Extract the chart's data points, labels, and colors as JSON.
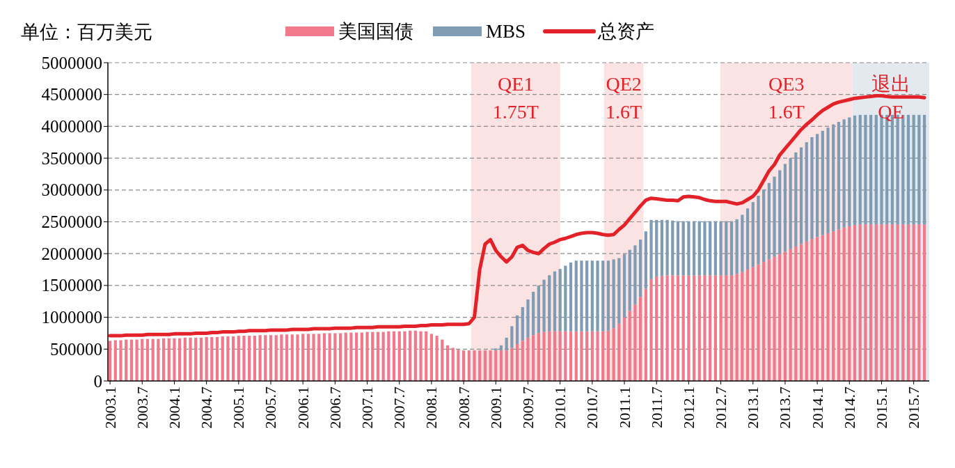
{
  "chart_data": {
    "type": "bar",
    "stacked": true,
    "ylabel": "单位：百万美元",
    "legend": "top",
    "grid": "y",
    "line_style": "solid",
    "x": [
      "2003-01",
      "2003-02",
      "2003-03",
      "2003-04",
      "2003-05",
      "2003-06",
      "2003-07",
      "2003-08",
      "2003-09",
      "2003-10",
      "2003-11",
      "2003-12",
      "2004-01",
      "2004-02",
      "2004-03",
      "2004-04",
      "2004-05",
      "2004-06",
      "2004-07",
      "2004-08",
      "2004-09",
      "2004-10",
      "2004-11",
      "2004-12",
      "2005-01",
      "2005-02",
      "2005-03",
      "2005-04",
      "2005-05",
      "2005-06",
      "2005-07",
      "2005-08",
      "2005-09",
      "2005-10",
      "2005-11",
      "2005-12",
      "2006-01",
      "2006-02",
      "2006-03",
      "2006-04",
      "2006-05",
      "2006-06",
      "2006-07",
      "2006-08",
      "2006-09",
      "2006-10",
      "2006-11",
      "2006-12",
      "2007-01",
      "2007-02",
      "2007-03",
      "2007-04",
      "2007-05",
      "2007-06",
      "2007-07",
      "2007-08",
      "2007-09",
      "2007-10",
      "2007-11",
      "2007-12",
      "2008-01",
      "2008-02",
      "2008-03",
      "2008-04",
      "2008-05",
      "2008-06",
      "2008-07",
      "2008-08",
      "2008-09",
      "2008-10",
      "2008-11",
      "2008-12",
      "2009-01",
      "2009-02",
      "2009-03",
      "2009-04",
      "2009-05",
      "2009-06",
      "2009-07",
      "2009-08",
      "2009-09",
      "2009-10",
      "2009-11",
      "2009-12",
      "2010-01",
      "2010-02",
      "2010-03",
      "2010-04",
      "2010-05",
      "2010-06",
      "2010-07",
      "2010-08",
      "2010-09",
      "2010-10",
      "2010-11",
      "2010-12",
      "2011-01",
      "2011-02",
      "2011-03",
      "2011-04",
      "2011-05",
      "2011-06",
      "2011-07",
      "2011-08",
      "2011-09",
      "2011-10",
      "2011-11",
      "2011-12",
      "2012-01",
      "2012-02",
      "2012-03",
      "2012-04",
      "2012-05",
      "2012-06",
      "2012-07",
      "2012-08",
      "2012-09",
      "2012-10",
      "2012-11",
      "2012-12",
      "2013-01",
      "2013-02",
      "2013-03",
      "2013-04",
      "2013-05",
      "2013-06",
      "2013-07",
      "2013-08",
      "2013-09",
      "2013-10",
      "2013-11",
      "2013-12",
      "2014-01",
      "2014-02",
      "2014-03",
      "2014-04",
      "2014-05",
      "2014-06",
      "2014-07",
      "2014-08",
      "2014-09",
      "2014-10",
      "2014-11",
      "2014-12",
      "2015-01",
      "2015-02",
      "2015-03",
      "2015-04",
      "2015-05",
      "2015-06",
      "2015-07",
      "2015-08",
      "2015-09"
    ],
    "xlim": [
      "2002-12-19",
      "2015-09-28"
    ],
    "xticks": [
      {
        "value": "2003-01",
        "label": "2003.1"
      },
      {
        "value": "2003-07",
        "label": "2003.7"
      },
      {
        "value": "2004-01",
        "label": "2004.1"
      },
      {
        "value": "2004-07",
        "label": "2004.7"
      },
      {
        "value": "2005-01",
        "label": "2005.1"
      },
      {
        "value": "2005-07",
        "label": "2005.7"
      },
      {
        "value": "2006-01",
        "label": "2006.1"
      },
      {
        "value": "2006-07",
        "label": "2006.7"
      },
      {
        "value": "2007-01",
        "label": "2007.1"
      },
      {
        "value": "2007-07",
        "label": "2007.7"
      },
      {
        "value": "2008-01",
        "label": "2008.1"
      },
      {
        "value": "2008-07",
        "label": "2008.7"
      },
      {
        "value": "2009-01",
        "label": "2009.1"
      },
      {
        "value": "2009-07",
        "label": "2009.7"
      },
      {
        "value": "2010-01",
        "label": "2010.1"
      },
      {
        "value": "2010-07",
        "label": "2010.7"
      },
      {
        "value": "2011-01",
        "label": "2011.1"
      },
      {
        "value": "2011-07",
        "label": "2011.7"
      },
      {
        "value": "2012-01",
        "label": "2012.1"
      },
      {
        "value": "2012-07",
        "label": "2012.7"
      },
      {
        "value": "2013-01",
        "label": "2013.1"
      },
      {
        "value": "2013-07",
        "label": "2013.7"
      },
      {
        "value": "2014-01",
        "label": "2014.1"
      },
      {
        "value": "2014-07",
        "label": "2014.7"
      },
      {
        "value": "2015-01",
        "label": "2015.1"
      },
      {
        "value": "2015-07",
        "label": "2015.7"
      }
    ],
    "ylim": [
      0,
      5000000
    ],
    "yticks": [
      0,
      500000,
      1000000,
      1500000,
      2000000,
      2500000,
      3000000,
      3500000,
      4000000,
      4500000,
      5000000
    ],
    "bands": [
      {
        "axis": "x",
        "from": "2008-08-13",
        "to": "2010-01-01",
        "label": "QE1\n1.75T",
        "color": "#fce3e3"
      },
      {
        "axis": "x",
        "from": "2010-09-07",
        "to": "2011-04-18",
        "label": "QE2\n1.6T",
        "color": "#fce3e3"
      },
      {
        "axis": "x",
        "from": "2012-06-28",
        "to": "2014-07-18",
        "label": "QE3\n1.6T",
        "color": "#fce3e3"
      },
      {
        "axis": "x",
        "from": "2014-07-18",
        "to": "2015-09-28",
        "label": "退出\nQE",
        "color": "#e3e9ee"
      }
    ],
    "series": [
      {
        "name": "美国国债",
        "color": "#f07a8c",
        "values": [
          630000,
          640000,
          640000,
          650000,
          650000,
          650000,
          660000,
          660000,
          660000,
          660000,
          670000,
          670000,
          670000,
          670000,
          680000,
          680000,
          680000,
          680000,
          690000,
          690000,
          690000,
          700000,
          700000,
          700000,
          710000,
          710000,
          710000,
          710000,
          720000,
          720000,
          720000,
          720000,
          730000,
          730000,
          730000,
          730000,
          740000,
          740000,
          740000,
          740000,
          750000,
          750000,
          750000,
          750000,
          760000,
          760000,
          760000,
          760000,
          770000,
          770000,
          770000,
          770000,
          780000,
          780000,
          780000,
          780000,
          790000,
          790000,
          780000,
          780000,
          740000,
          710000,
          650000,
          560000,
          520000,
          490000,
          480000,
          480000,
          480000,
          480000,
          480000,
          480000,
          480000,
          480000,
          480000,
          520000,
          580000,
          630000,
          680000,
          720000,
          750000,
          770000,
          780000,
          780000,
          780000,
          780000,
          780000,
          780000,
          780000,
          780000,
          780000,
          780000,
          780000,
          790000,
          830000,
          900000,
          1000000,
          1100000,
          1200000,
          1320000,
          1450000,
          1600000,
          1640000,
          1650000,
          1660000,
          1660000,
          1660000,
          1660000,
          1660000,
          1660000,
          1660000,
          1660000,
          1660000,
          1660000,
          1660000,
          1660000,
          1660000,
          1680000,
          1710000,
          1750000,
          1790000,
          1830000,
          1870000,
          1910000,
          1950000,
          1990000,
          2030000,
          2070000,
          2110000,
          2150000,
          2190000,
          2230000,
          2260000,
          2290000,
          2320000,
          2350000,
          2380000,
          2410000,
          2430000,
          2450000,
          2460000,
          2460000,
          2460000,
          2460000,
          2460000,
          2460000,
          2460000,
          2460000,
          2460000,
          2460000,
          2460000,
          2460000,
          2460000
        ]
      },
      {
        "name": "MBS",
        "color": "#7e9cb4",
        "values": [
          0,
          0,
          0,
          0,
          0,
          0,
          0,
          0,
          0,
          0,
          0,
          0,
          0,
          0,
          0,
          0,
          0,
          0,
          0,
          0,
          0,
          0,
          0,
          0,
          0,
          0,
          0,
          0,
          0,
          0,
          0,
          0,
          0,
          0,
          0,
          0,
          0,
          0,
          0,
          0,
          0,
          0,
          0,
          0,
          0,
          0,
          0,
          0,
          0,
          0,
          0,
          0,
          0,
          0,
          0,
          0,
          0,
          0,
          0,
          0,
          0,
          0,
          0,
          0,
          0,
          0,
          0,
          0,
          0,
          0,
          0,
          0,
          30000,
          80000,
          200000,
          340000,
          450000,
          530000,
          600000,
          680000,
          750000,
          820000,
          880000,
          940000,
          980000,
          1030000,
          1080000,
          1110000,
          1110000,
          1110000,
          1110000,
          1110000,
          1110000,
          1100000,
          1080000,
          1030000,
          990000,
          960000,
          930000,
          900000,
          900000,
          930000,
          890000,
          880000,
          870000,
          860000,
          850000,
          850000,
          850000,
          850000,
          850000,
          850000,
          850000,
          850000,
          850000,
          850000,
          850000,
          860000,
          900000,
          960000,
          1020000,
          1080000,
          1140000,
          1200000,
          1260000,
          1320000,
          1380000,
          1430000,
          1480000,
          1520000,
          1560000,
          1600000,
          1620000,
          1640000,
          1660000,
          1680000,
          1690000,
          1700000,
          1710000,
          1720000,
          1720000,
          1720000,
          1720000,
          1720000,
          1720000,
          1720000,
          1720000,
          1720000,
          1720000,
          1720000,
          1720000,
          1720000,
          1720000
        ]
      },
      {
        "name": "总资产",
        "type": "line",
        "color": "#e32129",
        "values": [
          710000,
          710000,
          710000,
          720000,
          720000,
          720000,
          720000,
          730000,
          730000,
          730000,
          730000,
          730000,
          740000,
          740000,
          740000,
          740000,
          750000,
          750000,
          750000,
          760000,
          760000,
          770000,
          770000,
          770000,
          780000,
          780000,
          790000,
          790000,
          790000,
          790000,
          800000,
          800000,
          800000,
          800000,
          810000,
          810000,
          810000,
          810000,
          820000,
          820000,
          820000,
          820000,
          830000,
          830000,
          830000,
          830000,
          840000,
          840000,
          840000,
          840000,
          850000,
          850000,
          850000,
          850000,
          850000,
          860000,
          860000,
          860000,
          870000,
          870000,
          880000,
          880000,
          880000,
          890000,
          890000,
          890000,
          890000,
          900000,
          1000000,
          1750000,
          2150000,
          2220000,
          2050000,
          1950000,
          1870000,
          1950000,
          2100000,
          2130000,
          2050000,
          2020000,
          2000000,
          2080000,
          2150000,
          2180000,
          2220000,
          2240000,
          2270000,
          2300000,
          2320000,
          2330000,
          2330000,
          2320000,
          2300000,
          2290000,
          2300000,
          2380000,
          2450000,
          2550000,
          2650000,
          2750000,
          2840000,
          2870000,
          2860000,
          2850000,
          2840000,
          2840000,
          2830000,
          2890000,
          2900000,
          2890000,
          2880000,
          2850000,
          2830000,
          2820000,
          2820000,
          2820000,
          2800000,
          2780000,
          2800000,
          2850000,
          2900000,
          3000000,
          3150000,
          3300000,
          3400000,
          3550000,
          3650000,
          3750000,
          3850000,
          3950000,
          4030000,
          4100000,
          4180000,
          4250000,
          4300000,
          4350000,
          4380000,
          4400000,
          4420000,
          4440000,
          4450000,
          4460000,
          4470000,
          4480000,
          4480000,
          4470000,
          4460000,
          4460000,
          4460000,
          4460000,
          4460000,
          4460000,
          4450000
        ]
      }
    ]
  }
}
